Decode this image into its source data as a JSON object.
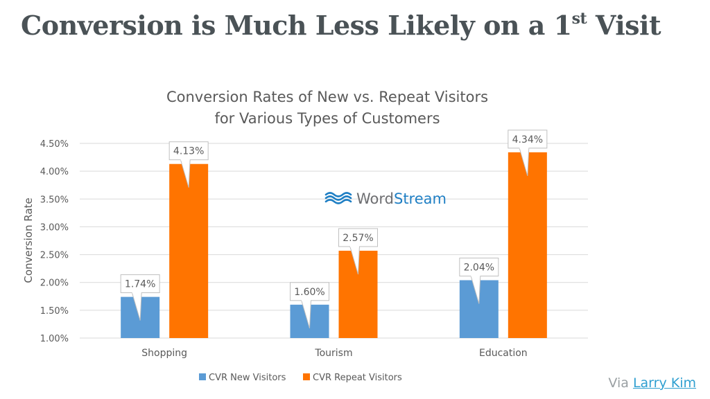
{
  "slide": {
    "title_main": "Conversion is Much Less Likely on a 1",
    "title_sup": "st",
    "title_end": " Visit",
    "via_prefix": "Via",
    "via_link": "Larry Kim"
  },
  "watermark": {
    "text_a": "Word",
    "text_b": "Stream"
  },
  "colors": {
    "new": "#5b9bd5",
    "repeat": "#ff7400",
    "grid": "#d9d9d9",
    "text": "#595959",
    "title": "#4a5256",
    "watermark_blue": "#1f7fc4",
    "watermark_gray": "#6d6e71"
  },
  "chart_data": {
    "type": "bar",
    "title_lines": [
      "Conversion Rates of New vs. Repeat Visitors",
      "for Various Types of Customers"
    ],
    "ylabel": "Conversion Rate",
    "xlabel": "",
    "ylim": [
      1.0,
      4.5
    ],
    "yticks": [
      "1.00%",
      "1.50%",
      "2.00%",
      "2.50%",
      "3.00%",
      "3.50%",
      "4.00%",
      "4.50%"
    ],
    "categories": [
      "Shopping",
      "Tourism",
      "Education"
    ],
    "series": [
      {
        "name": "CVR New Visitors",
        "values": [
          1.74,
          1.6,
          2.04
        ],
        "labels": [
          "1.74%",
          "1.60%",
          "2.04%"
        ]
      },
      {
        "name": "CVR Repeat Visitors",
        "values": [
          4.13,
          2.57,
          4.34
        ],
        "labels": [
          "4.13%",
          "2.57%",
          "4.34%"
        ]
      }
    ],
    "grid": true,
    "legend": "bottom"
  }
}
